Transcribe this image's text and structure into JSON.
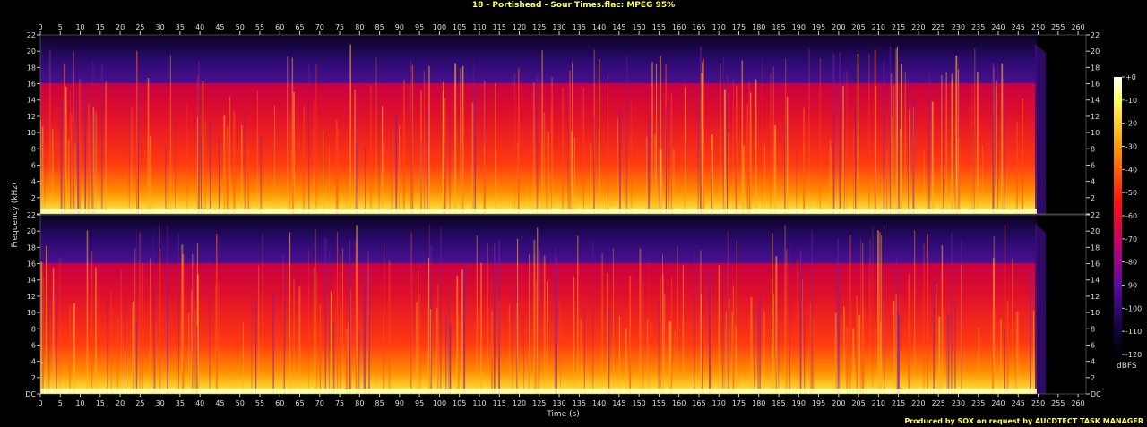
{
  "chart_data": {
    "type": "heatmap",
    "title": "18 - Portishead - Sour Times.flac: MPEG 95%",
    "xlabel": "Time (s)",
    "ylabel": "Frequency (kHz)",
    "xlim": [
      0,
      262
    ],
    "ylim": [
      0,
      22
    ],
    "x_ticks": [
      0,
      5,
      10,
      15,
      20,
      25,
      30,
      35,
      40,
      45,
      50,
      55,
      60,
      65,
      70,
      75,
      80,
      85,
      90,
      95,
      100,
      105,
      110,
      115,
      120,
      125,
      130,
      135,
      140,
      145,
      150,
      155,
      160,
      165,
      170,
      175,
      180,
      185,
      190,
      195,
      200,
      205,
      210,
      215,
      220,
      225,
      230,
      235,
      240,
      245,
      250,
      255,
      260
    ],
    "y_ticks": [
      "DC",
      "2",
      "4",
      "6",
      "8",
      "10",
      "12",
      "14",
      "16",
      "18",
      "20",
      "22"
    ],
    "channels": 2,
    "lowpass_cutoff_khz": 16,
    "audio_end_s": 251,
    "colorbar": {
      "label": "dBFS",
      "ticks": [
        "+0",
        "-10",
        "-20",
        "-30",
        "-40",
        "-50",
        "-60",
        "-70",
        "-80",
        "-90",
        "-100",
        "-110",
        "-120"
      ],
      "range": [
        -120,
        0
      ]
    }
  },
  "footer": "Produced by SOX on request by AUCDTECT TASK MANAGER",
  "colors": {
    "label_yellow": "#ffff55",
    "low": "#000000",
    "mid_low": "#2a0a6b",
    "mid": "#b0005a",
    "mid_high": "#ff2020",
    "high": "#ff9a00",
    "peak": "#ffffe0"
  }
}
